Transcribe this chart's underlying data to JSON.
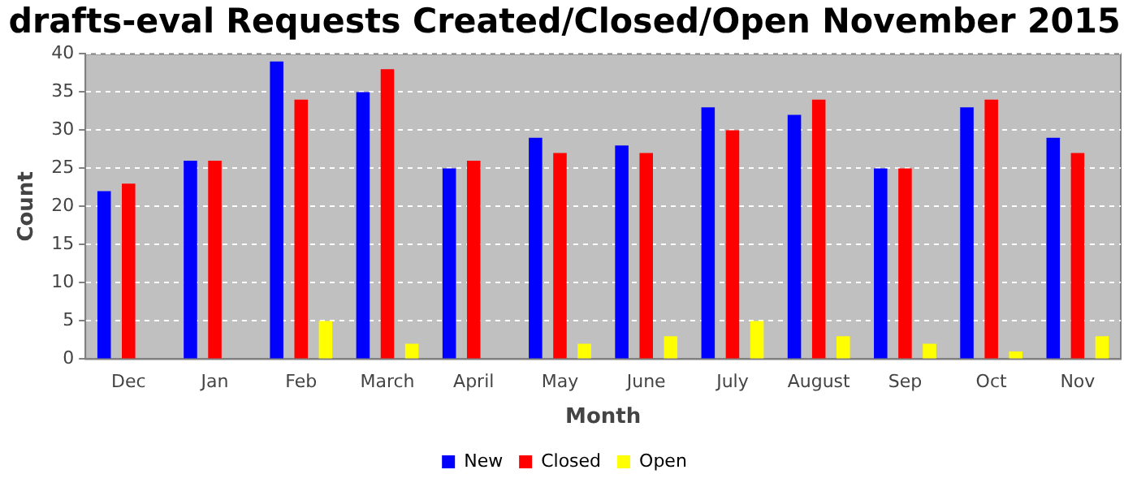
{
  "chart_data": {
    "type": "bar",
    "title": "drafts-eval Requests Created/Closed/Open November 2015",
    "xlabel": "Month",
    "ylabel": "Count",
    "categories": [
      "Dec",
      "Jan",
      "Feb",
      "March",
      "April",
      "May",
      "June",
      "July",
      "August",
      "Sep",
      "Oct",
      "Nov"
    ],
    "series": [
      {
        "name": "New",
        "color": "#0000ff",
        "values": [
          22,
          26,
          39,
          35,
          25,
          29,
          28,
          33,
          32,
          25,
          33,
          29
        ]
      },
      {
        "name": "Closed",
        "color": "#ff0000",
        "values": [
          23,
          26,
          34,
          38,
          26,
          27,
          27,
          30,
          34,
          25,
          34,
          27
        ]
      },
      {
        "name": "Open",
        "color": "#ffff00",
        "values": [
          0,
          0,
          5,
          2,
          0,
          2,
          3,
          5,
          3,
          2,
          1,
          3
        ]
      }
    ],
    "ylim": [
      0,
      40
    ],
    "yticks": [
      0,
      5,
      10,
      15,
      20,
      25,
      30,
      35,
      40
    ],
    "grid": "y",
    "legend": "bottom"
  }
}
